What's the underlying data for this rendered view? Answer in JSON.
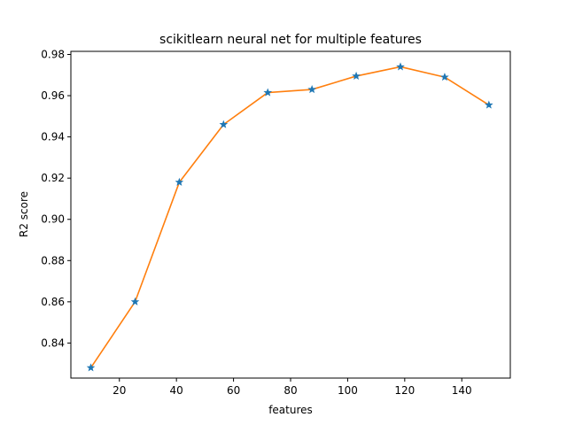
{
  "chart_data": {
    "type": "line",
    "title": "scikitlearn neural net for multiple features",
    "xlabel": "features",
    "ylabel": "R2 score",
    "xlim": [
      3,
      157
    ],
    "ylim": [
      0.823,
      0.9815
    ],
    "xticks": [
      20,
      40,
      60,
      80,
      100,
      120,
      140
    ],
    "yticks": [
      0.84,
      0.86,
      0.88,
      0.9,
      0.92,
      0.94,
      0.96,
      0.98
    ],
    "ytick_labels": [
      "0.84",
      "0.86",
      "0.88",
      "0.90",
      "0.92",
      "0.94",
      "0.96",
      "0.98"
    ],
    "grid": false,
    "x": [
      10,
      25.5,
      41,
      56.5,
      72,
      87.5,
      103,
      118.5,
      134,
      149.5
    ],
    "series": [
      {
        "values": [
          0.828,
          0.86,
          0.918,
          0.946,
          0.9615,
          0.963,
          0.9695,
          0.974,
          0.969,
          0.9555
        ],
        "line_color": "#ff7f0e",
        "marker": "star",
        "marker_color": "#1f77b4"
      }
    ]
  }
}
